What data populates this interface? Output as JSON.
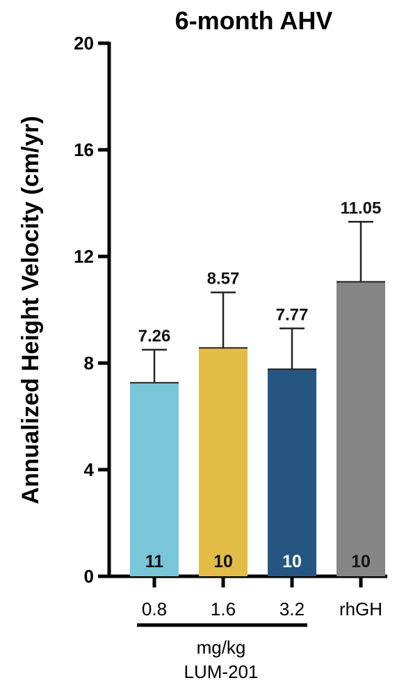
{
  "chart_data": {
    "type": "bar",
    "title": "6-month AHV",
    "ylabel": "Annualized Height Velocity (cm/yr)",
    "ylim": [
      0,
      20
    ],
    "yticks": [
      0,
      4,
      8,
      12,
      16,
      20
    ],
    "categories": [
      "0.8",
      "1.6",
      "3.2",
      "rhGH"
    ],
    "values": [
      7.26,
      8.57,
      7.77,
      11.05
    ],
    "error_upper": [
      8.5,
      10.65,
      9.3,
      13.3
    ],
    "value_labels": [
      "7.26",
      "8.57",
      "7.77",
      "11.05"
    ],
    "n_labels": [
      "11",
      "10",
      "10",
      "10"
    ],
    "colors": [
      "#7ac6d9",
      "#e3bc48",
      "#255681",
      "#868686"
    ],
    "n_label_colors": [
      "#111111",
      "#111111",
      "#ffffff",
      "#111111"
    ],
    "group_label": {
      "line1": "mg/kg",
      "line2": "LUM-201"
    },
    "grid": false
  }
}
